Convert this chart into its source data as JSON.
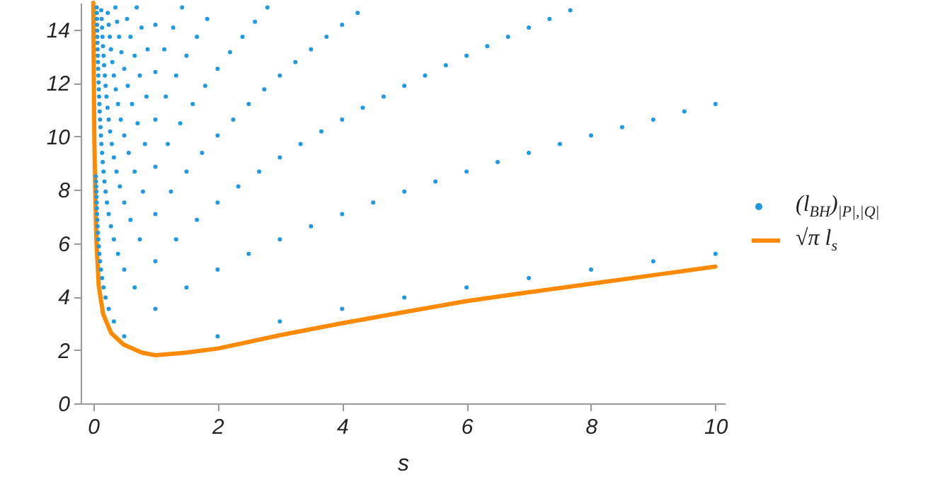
{
  "chart_data": {
    "type": "scatter",
    "xlabel": "s",
    "xlim": [
      -0.2,
      10.15
    ],
    "ylim": [
      0,
      15
    ],
    "xticks": [
      0,
      2,
      4,
      6,
      8,
      10
    ],
    "yticks": [
      0,
      2,
      4,
      6,
      8,
      10,
      12,
      14
    ],
    "legend": "right",
    "series": [
      {
        "name": "(l$_{BH}$)$_{|P|,|Q|}$",
        "marker": "circle",
        "color": "#1f9ae0",
        "x": [
          2,
          3,
          4,
          5,
          6,
          7,
          8,
          9,
          10,
          0.5,
          1,
          1.5,
          2,
          2.5,
          3,
          3.5,
          4,
          4.5,
          5,
          5.5,
          6,
          6.5,
          7,
          7.5,
          8,
          8.5,
          9,
          9.5,
          10,
          0.333,
          0.667,
          1,
          1.333,
          1.667,
          2,
          2.333,
          2.667,
          3,
          3.333,
          3.667,
          4,
          4.333,
          4.667,
          5,
          5.333,
          5.667,
          6,
          6.333,
          6.667,
          7,
          7.333,
          7.667,
          0.25,
          0.5,
          0.75,
          1,
          1.25,
          1.5,
          1.75,
          2,
          2.25,
          2.5,
          2.75,
          3,
          3.25,
          3.5,
          3.75,
          4,
          4.25,
          0.2,
          0.4,
          0.6,
          0.8,
          1,
          1.2,
          1.4,
          1.6,
          1.8,
          2,
          2.2,
          2.4,
          2.6,
          2.8,
          0.167,
          0.333,
          0.5,
          0.667,
          0.833,
          1,
          1.167,
          1.333,
          1.5,
          1.667,
          1.833,
          0.143,
          0.286,
          0.429,
          0.571,
          0.714,
          0.857,
          1,
          1.143,
          1.286,
          1.429,
          0.125,
          0.25,
          0.375,
          0.5,
          0.625,
          0.75,
          0.875,
          1,
          0.111,
          0.222,
          0.333,
          0.444,
          0.556,
          0.667,
          0.778,
          0.1,
          0.2,
          0.3,
          0.4,
          0.5,
          0.6,
          0.7,
          0.091,
          0.182,
          0.273,
          0.364,
          0.455,
          0.545,
          0.083,
          0.167,
          0.25,
          0.333,
          0.417,
          0.077,
          0.154,
          0.231,
          0.308,
          0.385,
          0.071,
          0.143,
          0.214,
          0.286,
          0.357,
          0.067,
          0.133,
          0.2,
          0.267,
          0.063,
          0.125,
          0.188,
          0.25,
          0.059,
          0.118,
          0.176,
          0.235,
          0.056,
          0.111,
          0.167,
          0.053,
          0.105,
          0.158,
          0.05,
          0.1,
          0.15,
          0.048,
          0.095,
          0.143,
          0.045,
          0.091,
          0.136,
          0.043,
          0.087,
          0.13,
          0.083,
          0.08,
          0.077,
          0.074,
          0.071,
          0.069,
          0.067,
          0.065,
          0.063,
          0.061,
          0.059,
          0.057
        ],
        "values": [
          2.51,
          3.07,
          3.54,
          3.96,
          4.34,
          4.69,
          5.01,
          5.32,
          5.6,
          2.51,
          3.54,
          4.34,
          5.01,
          5.6,
          6.14,
          6.63,
          7.09,
          7.52,
          7.93,
          8.31,
          8.68,
          9.04,
          9.38,
          9.71,
          10.03,
          10.34,
          10.63,
          10.93,
          11.21,
          3.07,
          4.34,
          5.32,
          6.14,
          6.87,
          7.52,
          8.12,
          8.68,
          9.21,
          9.71,
          10.18,
          10.63,
          11.07,
          11.49,
          11.89,
          12.28,
          12.66,
          13.02,
          13.38,
          13.73,
          14.07,
          14.4,
          14.72,
          3.54,
          5.01,
          6.14,
          7.09,
          7.93,
          8.68,
          9.38,
          10.03,
          10.63,
          11.21,
          11.76,
          12.28,
          12.78,
          13.26,
          13.73,
          14.18,
          14.62,
          3.96,
          5.6,
          6.87,
          7.93,
          8.86,
          9.71,
          10.49,
          11.21,
          11.89,
          12.53,
          13.15,
          13.73,
          14.29,
          14.83,
          4.34,
          6.14,
          7.52,
          8.68,
          9.71,
          10.63,
          11.49,
          12.28,
          13.02,
          13.73,
          14.4,
          4.69,
          6.63,
          8.12,
          9.38,
          10.49,
          11.49,
          12.41,
          13.26,
          14.07,
          14.83,
          5.01,
          7.09,
          8.68,
          10.03,
          11.21,
          12.28,
          13.26,
          14.18,
          5.32,
          7.52,
          9.21,
          10.63,
          11.89,
          13.02,
          14.07,
          5.6,
          7.93,
          9.71,
          11.21,
          12.53,
          13.73,
          14.83,
          5.88,
          8.31,
          10.18,
          11.76,
          13.15,
          14.4,
          6.14,
          8.68,
          10.63,
          12.28,
          13.73,
          6.39,
          9.04,
          11.07,
          12.78,
          14.29,
          6.63,
          9.38,
          11.49,
          13.26,
          14.83,
          6.87,
          9.71,
          11.89,
          13.73,
          7.09,
          10.03,
          12.28,
          14.18,
          7.31,
          10.34,
          12.66,
          14.62,
          7.52,
          10.63,
          13.02,
          7.73,
          10.93,
          13.38,
          7.93,
          11.21,
          13.73,
          8.12,
          11.49,
          14.07,
          8.31,
          11.76,
          14.4,
          8.5,
          12.02,
          14.72,
          12.28,
          12.53,
          12.78,
          13.02,
          13.26,
          13.5,
          13.73,
          13.96,
          14.18,
          14.4,
          14.62,
          14.83
        ]
      },
      {
        "name": "√π l$_{s}$",
        "type": "line",
        "color": "#ff8a00",
        "x": [
          0.003,
          0.01,
          0.02,
          0.035,
          0.05,
          0.09,
          0.16,
          0.29,
          0.49,
          0.78,
          1,
          1.5,
          2,
          3,
          4,
          5,
          6,
          7,
          8,
          9,
          10
        ],
        "values": [
          15,
          12.4,
          9.8,
          7.8,
          6.2,
          4.4,
          3.35,
          2.63,
          2.2,
          1.9,
          1.8,
          1.9,
          2.05,
          2.55,
          3,
          3.42,
          3.83,
          4.16,
          4.48,
          4.8,
          5.12
        ]
      }
    ]
  }
}
